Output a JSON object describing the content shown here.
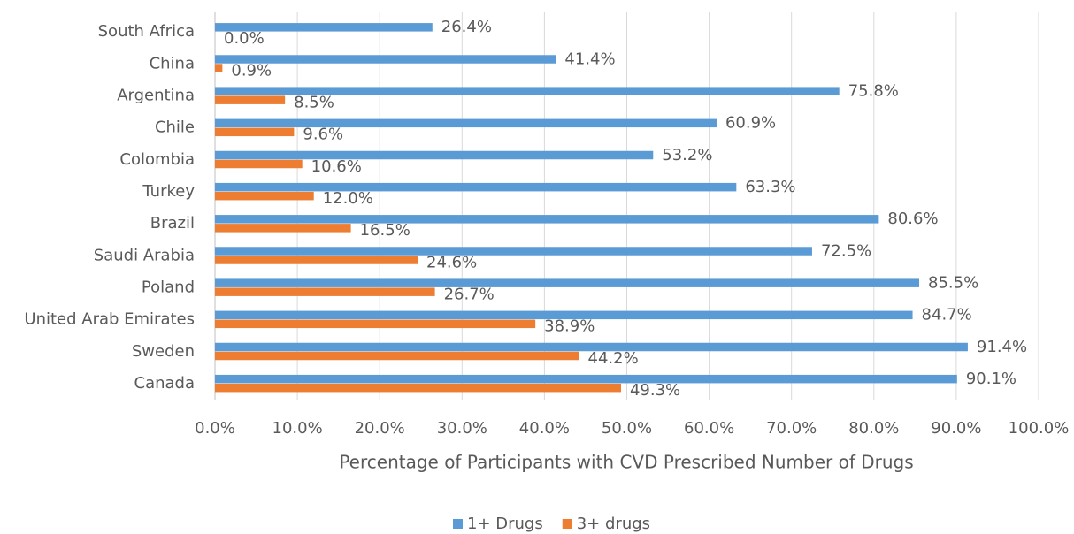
{
  "chart_data": {
    "type": "hbar",
    "xlabel": "Percentage of Participants with CVD Prescribed Number of Drugs",
    "categories": [
      "South Africa",
      "China",
      "Argentina",
      "Chile",
      "Colombia",
      "Turkey",
      "Brazil",
      "Saudi Arabia",
      "Poland",
      "United Arab Emirates",
      "Sweden",
      "Canada"
    ],
    "series": [
      {
        "name": "1+ Drugs",
        "color": "#5b9bd5",
        "values": [
          26.4,
          41.4,
          75.8,
          60.9,
          53.2,
          63.3,
          80.6,
          72.5,
          85.5,
          84.7,
          91.4,
          90.1
        ],
        "value_labels": [
          "26.4%",
          "41.4%",
          "75.8%",
          "60.9%",
          "53.2%",
          "63.3%",
          "80.6%",
          "72.5%",
          "85.5%",
          "84.7%",
          "91.4%",
          "90.1%"
        ]
      },
      {
        "name": "3+ drugs",
        "color": "#ed7d31",
        "values": [
          0.0,
          0.9,
          8.5,
          9.6,
          10.6,
          12.0,
          16.5,
          24.6,
          26.7,
          38.9,
          44.2,
          49.3
        ],
        "value_labels": [
          "0.0%",
          "0.9%",
          "8.5%",
          "9.6%",
          "10.6%",
          "12.0%",
          "16.5%",
          "24.6%",
          "26.7%",
          "38.9%",
          "44.2%",
          "49.3%"
        ]
      }
    ],
    "xlim": [
      0,
      100
    ],
    "xticks": [
      {
        "value": 0,
        "label": "0.0%"
      },
      {
        "value": 10,
        "label": "10.0%"
      },
      {
        "value": 20,
        "label": "20.0%"
      },
      {
        "value": 30,
        "label": "30.0%"
      },
      {
        "value": 40,
        "label": "40.0%"
      },
      {
        "value": 50,
        "label": "50.0%"
      },
      {
        "value": 60,
        "label": "60.0%"
      },
      {
        "value": 70,
        "label": "70.0%"
      },
      {
        "value": 80,
        "label": "80.0%"
      },
      {
        "value": 90,
        "label": "90.0%"
      },
      {
        "value": 100,
        "label": "100.0%"
      }
    ],
    "grid": true,
    "legend": "bottom"
  }
}
